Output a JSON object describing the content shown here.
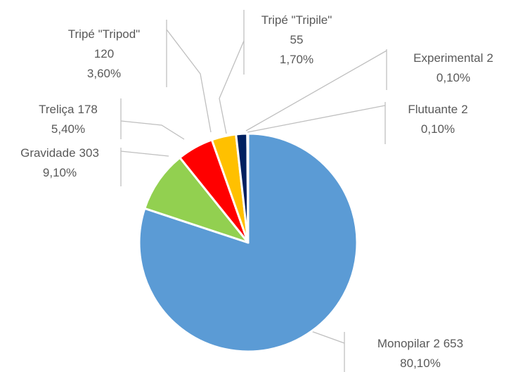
{
  "chart_data": {
    "type": "pie",
    "categories": [
      "Monopilar",
      "Gravidade",
      "Treliça",
      "Tripé \"Tripod\"",
      "Tripé \"Tripile\"",
      "Flutuante",
      "Experimental"
    ],
    "values": [
      2653,
      303,
      178,
      120,
      55,
      2,
      2
    ],
    "value_labels": [
      "2 653",
      "303",
      "178",
      "120",
      "55",
      "2",
      "2"
    ],
    "percents": [
      80.1,
      9.1,
      5.4,
      3.6,
      1.7,
      0.1,
      0.1
    ],
    "percent_labels": [
      "80,10%",
      "9,10%",
      "5,40%",
      "3,60%",
      "1,70%",
      "0,10%",
      "0,10%"
    ],
    "colors": [
      "#5b9bd5",
      "#92d050",
      "#ff0000",
      "#ffc000",
      "#002060",
      "#7f7f7f",
      "#a5a5a5"
    ]
  }
}
